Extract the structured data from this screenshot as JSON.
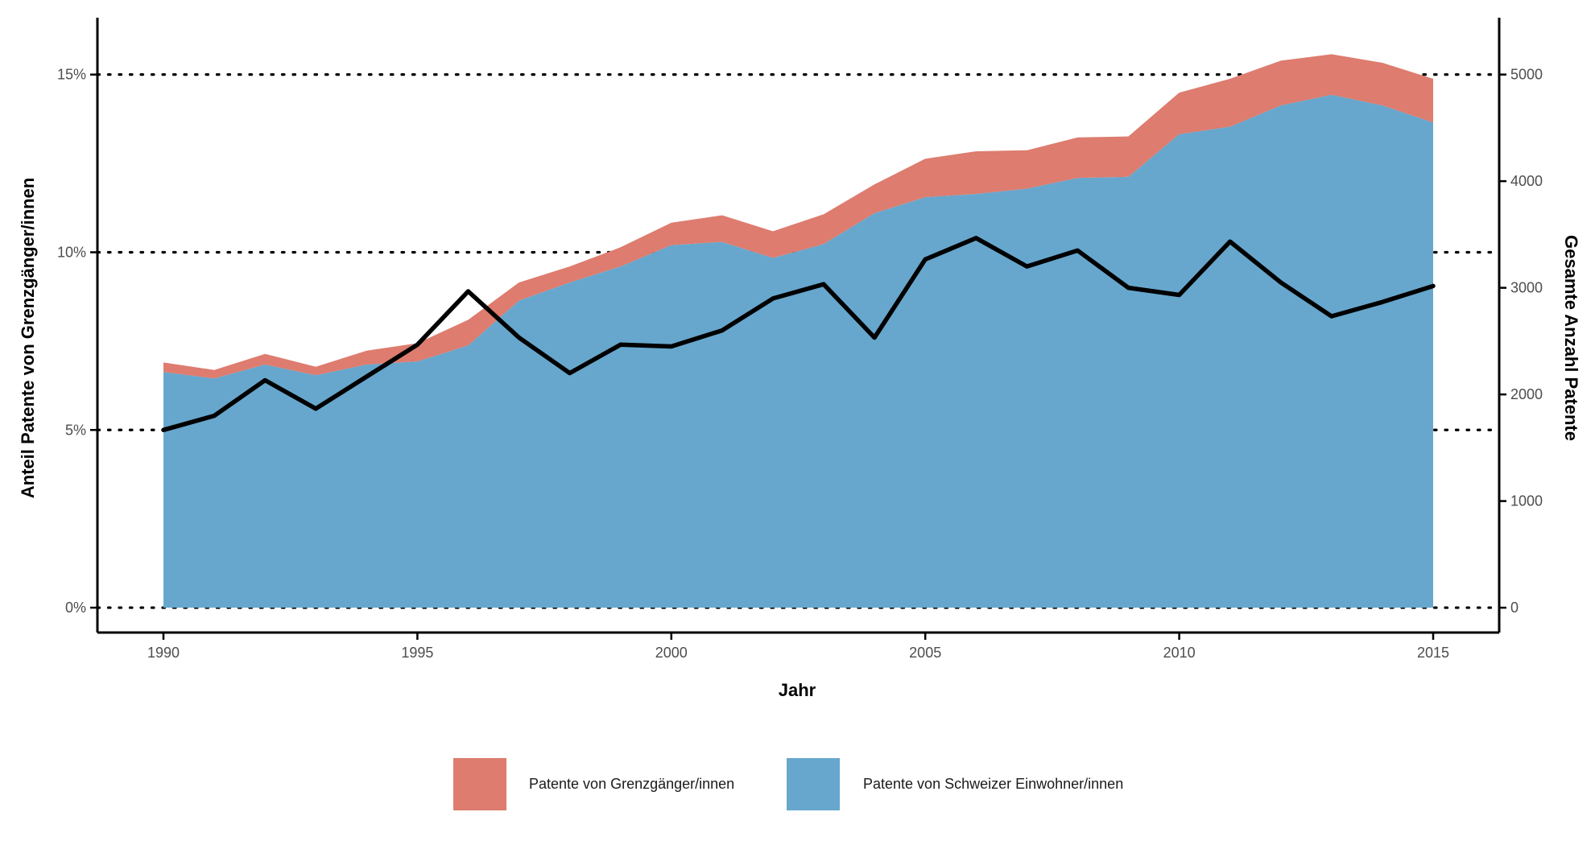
{
  "chart_data": {
    "type": "area",
    "x": [
      1990,
      1991,
      1992,
      1993,
      1994,
      1995,
      1996,
      1997,
      1998,
      1999,
      2000,
      2001,
      2002,
      2003,
      2004,
      2005,
      2006,
      2007,
      2008,
      2009,
      2010,
      2011,
      2012,
      2013,
      2014,
      2015
    ],
    "xlabel": "Jahr",
    "ylabel_left": "Anteil Patente von Grenzgänger/innen",
    "ylabel_right": "Gesamte Anzahl Patente",
    "xlim": [
      1988.7,
      2016.3
    ],
    "ylim_left": [
      -0.7,
      16.6
    ],
    "ylim_right": [
      -233,
      5533
    ],
    "x_ticks": [
      "1990",
      "1995",
      "2000",
      "2005",
      "2010",
      "2015"
    ],
    "y_ticks_left": [
      "0%",
      "5%",
      "10%",
      "15%"
    ],
    "y_ticks_right": [
      "0",
      "1000",
      "2000",
      "3000",
      "4000",
      "5000"
    ],
    "grid": "dotted horizontal at 0%, 5%, 10%, 15%",
    "legend_position": "bottom",
    "series": [
      {
        "name": "Patente von Grenzgänger/innen",
        "kind": "stacked-area",
        "axis": "right",
        "color": "#dd7c6f",
        "values": [
          90,
          80,
          100,
          80,
          130,
          170,
          240,
          170,
          150,
          180,
          210,
          250,
          250,
          280,
          270,
          360,
          400,
          360,
          380,
          380,
          390,
          450,
          420,
          380,
          400,
          410
        ]
      },
      {
        "name": "Patente von Schweizer Einwohner/innen",
        "kind": "stacked-area",
        "axis": "right",
        "color": "#67a7cd",
        "values": [
          2210,
          2150,
          2280,
          2180,
          2280,
          2310,
          2460,
          2880,
          3050,
          3200,
          3400,
          3430,
          3280,
          3410,
          3700,
          3850,
          3880,
          3930,
          4030,
          4040,
          4440,
          4510,
          4710,
          4810,
          4710,
          4550
        ]
      },
      {
        "kind": "line",
        "axis": "left",
        "color": "#000000",
        "values": [
          5.0,
          5.4,
          6.4,
          5.6,
          6.5,
          7.4,
          8.9,
          7.6,
          6.6,
          7.4,
          7.35,
          7.8,
          8.7,
          9.1,
          7.6,
          9.8,
          10.4,
          9.6,
          10.05,
          9.0,
          8.8,
          10.3,
          9.15,
          8.2,
          8.6,
          9.05
        ]
      }
    ]
  }
}
